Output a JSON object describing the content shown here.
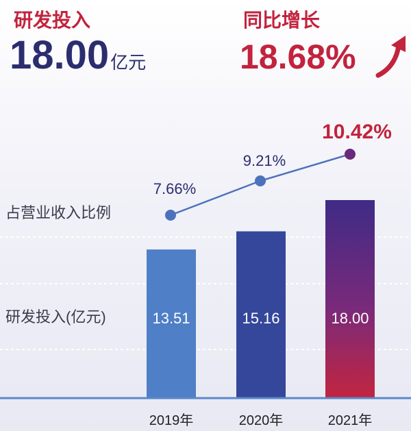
{
  "header": {
    "rd_label": "研发投入",
    "rd_value": "18.00",
    "rd_unit": "亿元",
    "growth_label": "同比增长",
    "growth_value": "18.68%"
  },
  "colors": {
    "navy": "#2b2d6e",
    "crimson": "#c2233d",
    "label_gray": "#3a3a4a"
  },
  "chart_data": {
    "type": "bar",
    "categories": [
      "2019年",
      "2020年",
      "2021年"
    ],
    "series": [
      {
        "name": "研发投入(亿元)",
        "values": [
          13.51,
          15.16,
          18.0
        ],
        "labels": [
          "13.51",
          "15.16",
          "18.00"
        ]
      },
      {
        "name": "占营业收入比例",
        "type": "line",
        "values": [
          7.66,
          9.21,
          10.42
        ],
        "labels": [
          "7.66%",
          "9.21%",
          "10.42%"
        ]
      }
    ],
    "row_labels": [
      "占营业收入比例",
      "研发投入(亿元)"
    ],
    "bar_colors": [
      "#4f7fc6",
      "#34479a",
      "gradient-purple-crimson"
    ],
    "line_color": "#4d72bc",
    "highlight_label_color": "#c2233d",
    "grid": "dashed-white"
  }
}
